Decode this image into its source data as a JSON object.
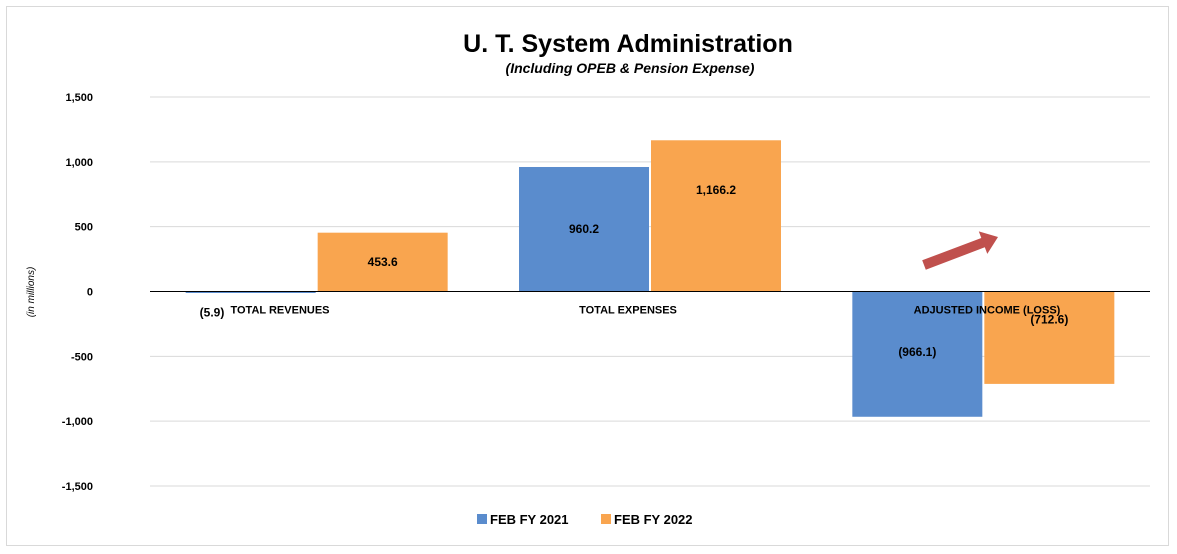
{
  "colors": {
    "series_2021": "#5a8ccd",
    "series_2022": "#f9a54f",
    "arrow": "#c0504d",
    "gridline": "#d9d9d9",
    "axis": "#000000"
  },
  "chart_data": {
    "type": "bar",
    "title": "U. T. System Administration",
    "subtitle": "(Including OPEB & Pension Expense)",
    "ylabel": "(in millions)",
    "xlabel": "",
    "categories": [
      "TOTAL REVENUES",
      "TOTAL EXPENSES",
      "ADJUSTED INCOME (LOSS)"
    ],
    "series": [
      {
        "name": "FEB FY 2021",
        "values": [
          -5.9,
          960.2,
          -966.1
        ],
        "labels": [
          "(5.9)",
          "960.2",
          "(966.1)"
        ]
      },
      {
        "name": "FEB FY 2022",
        "values": [
          453.6,
          1166.2,
          -712.6
        ],
        "labels": [
          "453.6",
          "1,166.2",
          "(712.6)"
        ]
      }
    ],
    "ylim": [
      -1500,
      1500
    ],
    "yticks": [
      1500,
      1000,
      500,
      0,
      -500,
      -1000,
      -1500
    ],
    "ytick_labels": [
      "1,500",
      "1,000",
      "500",
      "0",
      "-500",
      "-1,000",
      "-1,500"
    ],
    "grid": true,
    "legend_position": "bottom-center",
    "annotations": [
      {
        "type": "arrow",
        "direction": "up-right",
        "category": "ADJUSTED INCOME (LOSS)"
      }
    ]
  }
}
